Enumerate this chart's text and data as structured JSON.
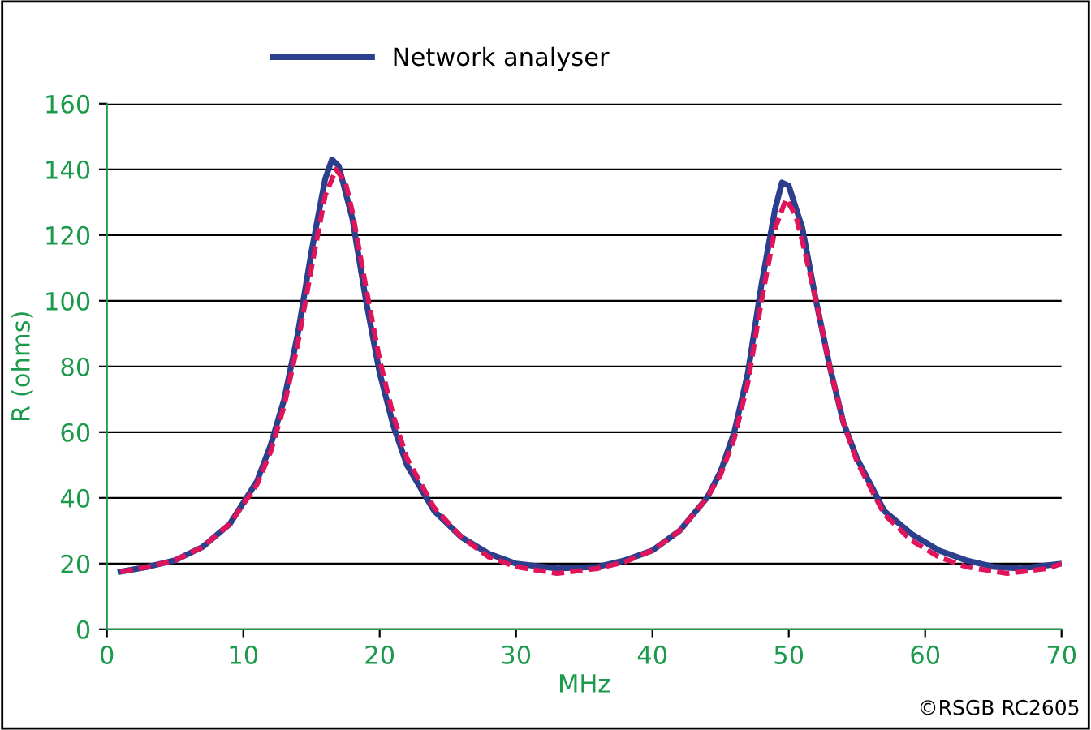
{
  "chart_data": {
    "type": "line",
    "xlabel": "MHz",
    "ylabel": "R (ohms)",
    "xlim": [
      0,
      70
    ],
    "xticks": [
      0,
      10,
      20,
      30,
      40,
      50,
      60,
      70
    ],
    "ylim": [
      0,
      160
    ],
    "yticks": [
      0,
      20,
      40,
      60,
      80,
      100,
      120,
      140,
      160
    ],
    "grid": "y",
    "legend": "top",
    "annotations": [
      "©RSGB RC2605"
    ],
    "series": [
      {
        "name": "Network analyser",
        "color": "#2b3f8c",
        "line_style": "solid",
        "x": [
          1,
          3,
          5,
          7,
          9,
          11,
          12,
          13,
          14,
          15,
          16,
          16.5,
          17,
          18,
          19,
          20,
          21,
          22,
          24,
          26,
          28,
          30,
          33,
          36,
          38,
          40,
          42,
          44,
          45,
          46,
          47,
          48,
          49,
          49.5,
          50,
          51,
          52,
          53,
          54,
          55,
          57,
          59,
          61,
          63,
          65,
          67,
          69,
          70
        ],
        "values": [
          17.5,
          19,
          21,
          25,
          32,
          45,
          56,
          70,
          90,
          115,
          137,
          143,
          141,
          125,
          100,
          78,
          62,
          50,
          36,
          28,
          23,
          20,
          18.5,
          19,
          21,
          24,
          30,
          40,
          48,
          60,
          78,
          105,
          128,
          136,
          135,
          122,
          100,
          80,
          63,
          52,
          36,
          29,
          24,
          21,
          19,
          18.5,
          19.5,
          20
        ]
      },
      {
        "color": "#e0145a",
        "line_style": "dashed",
        "x": [
          1,
          3,
          5,
          7,
          9,
          11,
          12,
          13,
          14,
          15,
          16,
          16.8,
          17.5,
          18,
          19,
          20,
          21,
          22,
          24,
          26,
          28,
          30,
          33,
          36,
          38,
          40,
          42,
          44,
          45,
          46,
          47,
          48,
          49,
          49.8,
          50.5,
          51,
          52,
          53,
          54,
          55,
          57,
          59,
          61,
          63,
          66,
          69,
          70
        ],
        "values": [
          17.5,
          19,
          21,
          25,
          32,
          44,
          54,
          68,
          87,
          110,
          132,
          140,
          136,
          127,
          104,
          82,
          65,
          52,
          37,
          28,
          22,
          19,
          17,
          18.5,
          20.5,
          24,
          30,
          40,
          47,
          58,
          75,
          100,
          122,
          131,
          126,
          118,
          100,
          80,
          63,
          51,
          35,
          27,
          22,
          19,
          17,
          18.5,
          20
        ]
      }
    ]
  }
}
